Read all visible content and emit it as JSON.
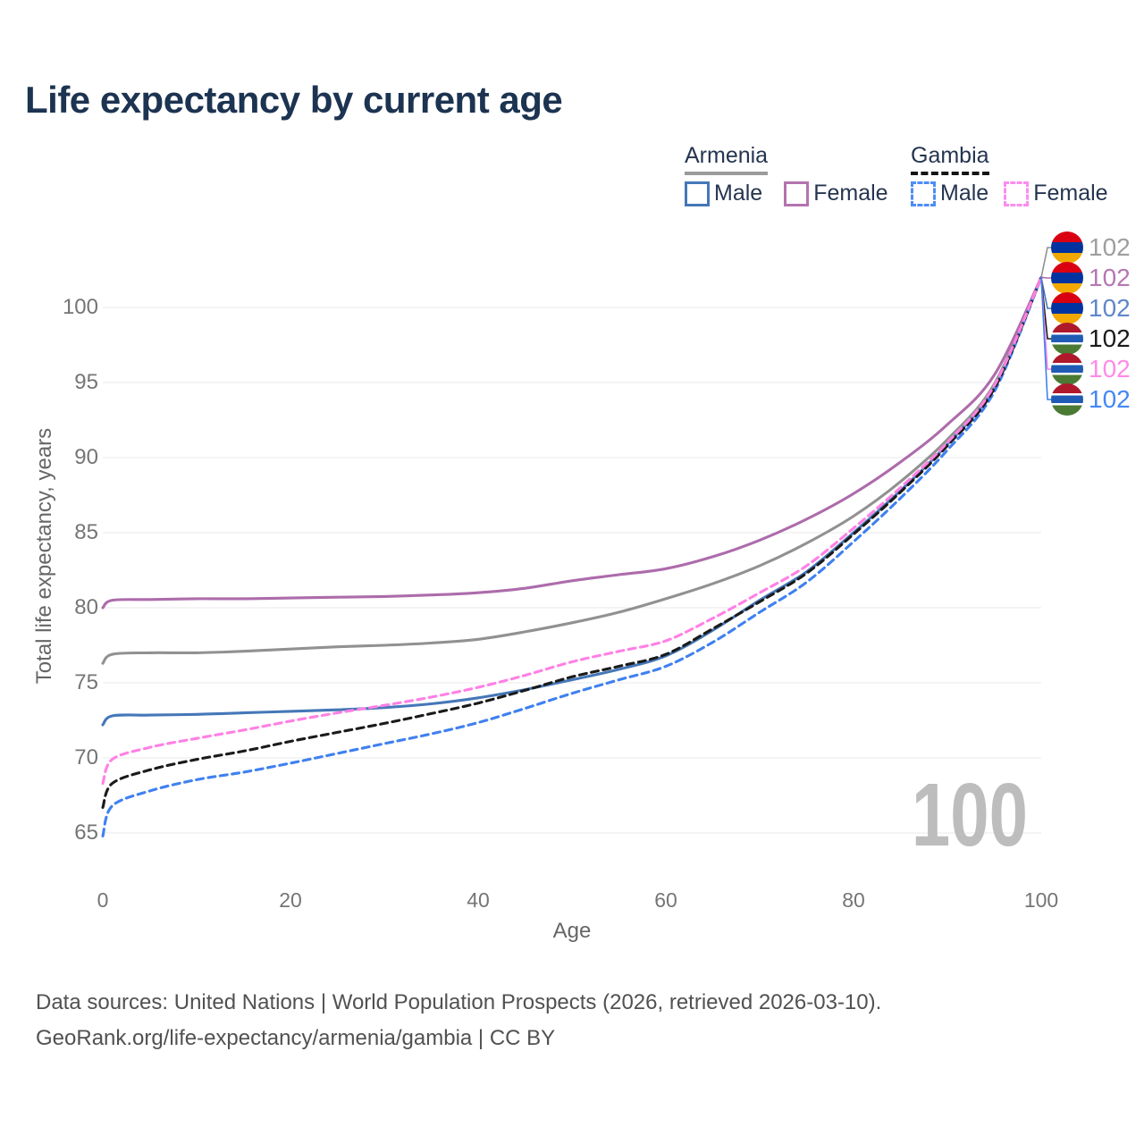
{
  "page": {
    "title": "Life expectancy by current age",
    "footer": {
      "line1": "Data sources: United Nations | World Population Prospects (2026, retrieved 2026-03-10).",
      "line2": "GeoRank.org/life-expectancy/armenia/gambia | CC BY"
    }
  },
  "colors": {
    "title": "#1c3351",
    "legend_text": "#253550",
    "axis_text": "#757575",
    "gridline": "#e9e9e9",
    "watermark": "#bdbdbd",
    "footer_text": "#515151"
  },
  "legend": {
    "groups": [
      {
        "country": "Armenia",
        "underline_style": "solid",
        "underline_color": "#9b9b9b",
        "items": [
          {
            "label": "Male",
            "color": "#4577b8",
            "dashed": false
          },
          {
            "label": "Female",
            "color": "#b473ae",
            "dashed": false
          }
        ]
      },
      {
        "country": "Gambia",
        "underline_style": "dashed",
        "underline_color": "#141414",
        "items": [
          {
            "label": "Male",
            "color": "#4c8df5",
            "dashed": true
          },
          {
            "label": "Female",
            "color": "#fb8cf0",
            "dashed": true
          }
        ]
      }
    ]
  },
  "chart_data": {
    "type": "line",
    "title": "Life expectancy by current age",
    "xlabel": "Age",
    "ylabel": "Total life expectancy, years",
    "x_ticks": [
      0,
      20,
      40,
      60,
      80,
      100
    ],
    "y_ticks": [
      65,
      70,
      75,
      80,
      85,
      90,
      95,
      100
    ],
    "xlim": [
      0,
      100
    ],
    "ylim": [
      63.5,
      103.5
    ],
    "grid": true,
    "legend_position": "top-right",
    "watermark": "100",
    "ages": [
      0,
      1,
      5,
      10,
      15,
      20,
      25,
      30,
      35,
      40,
      45,
      50,
      55,
      60,
      65,
      70,
      75,
      80,
      85,
      90,
      95,
      100
    ],
    "series": [
      {
        "name": "Armenia Male",
        "country": "Armenia",
        "sex": "Male",
        "color": "#4577b8",
        "dash": false,
        "values": [
          72.2,
          72.8,
          72.85,
          72.9,
          73.0,
          73.1,
          73.2,
          73.35,
          73.6,
          74.0,
          74.55,
          75.2,
          75.9,
          76.8,
          78.5,
          80.5,
          82.4,
          85.0,
          87.8,
          90.9,
          94.7,
          102
        ]
      },
      {
        "name": "Armenia",
        "country": "Armenia",
        "sex": "Both",
        "color": "#919191",
        "dash": false,
        "values": [
          76.3,
          76.9,
          77.0,
          77.0,
          77.1,
          77.25,
          77.4,
          77.5,
          77.65,
          77.9,
          78.4,
          79.0,
          79.7,
          80.6,
          81.6,
          82.8,
          84.3,
          86.1,
          88.4,
          91.2,
          94.9,
          102
        ]
      },
      {
        "name": "Armenia Female",
        "country": "Armenia",
        "sex": "Female",
        "color": "#ad6cab",
        "dash": false,
        "values": [
          80.0,
          80.5,
          80.55,
          80.6,
          80.6,
          80.65,
          80.7,
          80.75,
          80.85,
          81.0,
          81.3,
          81.8,
          82.2,
          82.6,
          83.4,
          84.5,
          85.9,
          87.6,
          89.7,
          92.2,
          95.5,
          102
        ]
      },
      {
        "name": "Gambia Male",
        "country": "Gambia",
        "sex": "Male",
        "color": "#3f80f0",
        "dash": true,
        "values": [
          64.8,
          66.8,
          67.8,
          68.55,
          69.05,
          69.65,
          70.3,
          70.95,
          71.6,
          72.35,
          73.3,
          74.3,
          75.2,
          76.1,
          77.7,
          79.7,
          81.7,
          84.4,
          87.3,
          90.5,
          94.4,
          102
        ]
      },
      {
        "name": "Gambia",
        "country": "Gambia",
        "sex": "Both",
        "color": "#1a1a1a",
        "dash": true,
        "values": [
          66.7,
          68.3,
          69.2,
          69.9,
          70.45,
          71.1,
          71.7,
          72.3,
          72.95,
          73.65,
          74.5,
          75.4,
          76.1,
          76.9,
          78.6,
          80.4,
          82.3,
          84.9,
          87.7,
          90.8,
          94.6,
          102
        ]
      },
      {
        "name": "Gambia Female",
        "country": "Gambia",
        "sex": "Female",
        "color": "#ff80e5",
        "dash": true,
        "values": [
          68.3,
          69.9,
          70.7,
          71.3,
          71.85,
          72.45,
          73.0,
          73.5,
          74.05,
          74.7,
          75.5,
          76.4,
          77.1,
          77.8,
          79.3,
          81.0,
          82.8,
          85.3,
          88.0,
          91.0,
          94.8,
          102
        ]
      }
    ],
    "end_labels": [
      {
        "value": "102",
        "flag": "armenia-flag-icon",
        "color": "#9e9e9e",
        "series": "Armenia"
      },
      {
        "value": "102",
        "flag": "armenia-flag-icon",
        "color": "#b577b3",
        "series": "Armenia Female"
      },
      {
        "value": "102",
        "flag": "armenia-flag-icon",
        "color": "#5e87c9",
        "series": "Armenia Male"
      },
      {
        "value": "102",
        "flag": "gambia-flag-icon",
        "color": "#1a1a1a",
        "series": "Gambia"
      },
      {
        "value": "102",
        "flag": "gambia-flag-icon",
        "color": "#ff8ae9",
        "series": "Gambia Female"
      },
      {
        "value": "102",
        "flag": "gambia-flag-icon",
        "color": "#4487f5",
        "series": "Gambia Male"
      }
    ]
  }
}
